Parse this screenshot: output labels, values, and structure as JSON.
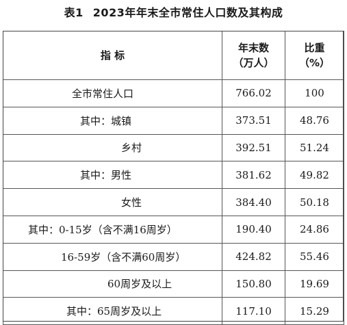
{
  "title": {
    "label": "表1",
    "text": "2023年年末全市常住人口数及其构成"
  },
  "table": {
    "headers": {
      "indicator": "指 标",
      "year_end_line1": "年末数",
      "year_end_line2": "（万人）",
      "share_line1": "比重",
      "share_line2": "（%）"
    },
    "rows": [
      {
        "name": "全市常住人口",
        "value": "766.02",
        "share": "100",
        "indent": 100
      },
      {
        "name": "其中：城镇",
        "value": "373.51",
        "share": "48.76",
        "indent": 112
      },
      {
        "name": "乡村",
        "value": "392.51",
        "share": "51.24",
        "indent": 172
      },
      {
        "name": "其中：男性",
        "value": "381.62",
        "share": "49.82",
        "indent": 112
      },
      {
        "name": "女性",
        "value": "384.40",
        "share": "50.18",
        "indent": 172
      },
      {
        "name": "其中：0-15岁（含不满16周岁）",
        "value": "190.40",
        "share": "24.86",
        "indent": 36
      },
      {
        "name": "16-59岁（含不满60周岁）",
        "value": "424.82",
        "share": "55.46",
        "indent": 84
      },
      {
        "name": "60周岁及以上",
        "value": "150.80",
        "share": "19.69",
        "indent": 152
      },
      {
        "name": "其中：65周岁及以上",
        "value": "117.10",
        "share": "15.29",
        "indent": 92
      }
    ]
  }
}
